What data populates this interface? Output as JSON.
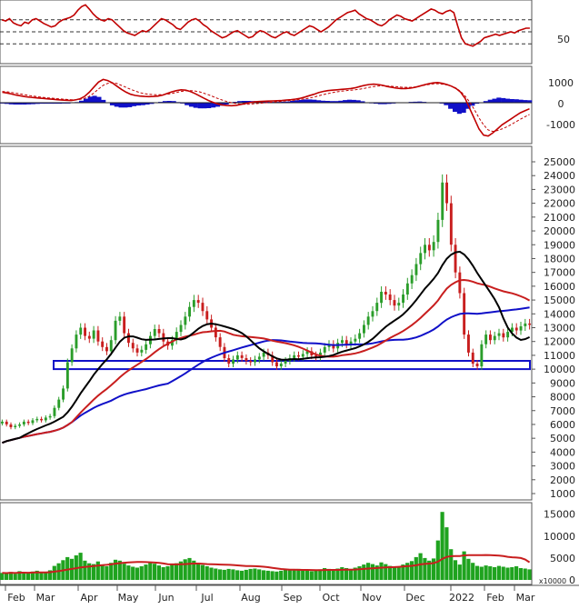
{
  "chart_data": [
    {
      "type": "line",
      "panel": "rsi",
      "title": "",
      "ylim": [
        0,
        100
      ],
      "reference_lines": [
        30,
        50,
        70
      ],
      "axis_ticks": [
        "50"
      ],
      "series": [
        {
          "color": "#c00000",
          "values": [
            70,
            68,
            72,
            65,
            62,
            60,
            66,
            64,
            70,
            72,
            68,
            64,
            61,
            58,
            60,
            66,
            70,
            72,
            74,
            78,
            86,
            92,
            95,
            88,
            80,
            74,
            70,
            68,
            72,
            70,
            64,
            58,
            52,
            48,
            46,
            44,
            48,
            52,
            50,
            54,
            60,
            66,
            72,
            70,
            66,
            62,
            56,
            54,
            60,
            66,
            70,
            72,
            68,
            62,
            58,
            52,
            48,
            44,
            40,
            42,
            46,
            50,
            52,
            48,
            44,
            40,
            42,
            48,
            52,
            50,
            46,
            42,
            40,
            44,
            48,
            50,
            46,
            44,
            48,
            52,
            56,
            60,
            58,
            54,
            50,
            54,
            58,
            64,
            70,
            74,
            78,
            82,
            84,
            86,
            80,
            76,
            72,
            70,
            66,
            62,
            60,
            64,
            70,
            74,
            78,
            76,
            72,
            70,
            68,
            72,
            76,
            80,
            84,
            88,
            86,
            82,
            80,
            84,
            86,
            82,
            60,
            40,
            30,
            28,
            26,
            30,
            34,
            40,
            42,
            44,
            46,
            44,
            46,
            48,
            50,
            48,
            52,
            54,
            56,
            56
          ]
        }
      ]
    },
    {
      "type": "line",
      "panel": "macd",
      "title": "",
      "ylim": [
        -1800,
        1800
      ],
      "axis_ticks": [
        "1000",
        "0",
        "-1000"
      ],
      "series": [
        {
          "color": "#c00000",
          "values": [
            520,
            480,
            430,
            380,
            340,
            300,
            270,
            250,
            230,
            210,
            190,
            170,
            150,
            130,
            120,
            110,
            140,
            200,
            320,
            520,
            780,
            1020,
            1150,
            1100,
            980,
            820,
            660,
            520,
            420,
            360,
            330,
            310,
            300,
            310,
            330,
            380,
            460,
            540,
            600,
            640,
            620,
            560,
            460,
            340,
            220,
            110,
            20,
            -60,
            -110,
            -140,
            -150,
            -130,
            -90,
            -40,
            10,
            40,
            60,
            70,
            80,
            90,
            100,
            110,
            130,
            150,
            180,
            220,
            280,
            350,
            420,
            500,
            560,
            600,
            620,
            640,
            660,
            680,
            700,
            740,
            800,
            860,
            900,
            920,
            900,
            860,
            800,
            760,
            720,
            700,
            700,
            720,
            760,
            820,
            880,
            940,
            980,
            1000,
            960,
            900,
            820,
            700,
            520,
            200,
            -300,
            -800,
            -1300,
            -1600,
            -1650,
            -1500,
            -1300,
            -1100,
            -950,
            -800,
            -650,
            -500,
            -400,
            -300
          ]
        },
        {
          "color": "#c00000",
          "values": [
            560,
            540,
            510,
            470,
            430,
            390,
            350,
            320,
            290,
            260,
            240,
            220,
            200,
            180,
            160,
            150,
            150,
            170,
            220,
            320,
            480,
            680,
            860,
            960,
            990,
            950,
            860,
            760,
            660,
            580,
            500,
            450,
            420,
            400,
            390,
            400,
            420,
            460,
            510,
            560,
            590,
            600,
            580,
            540,
            470,
            390,
            300,
            210,
            130,
            60,
            0,
            -40,
            -70,
            -80,
            -70,
            -50,
            -30,
            -10,
            10,
            30,
            50,
            70,
            90,
            110,
            130,
            160,
            190,
            230,
            280,
            340,
            400,
            450,
            500,
            540,
            570,
            600,
            620,
            640,
            670,
            710,
            760,
            800,
            830,
            840,
            830,
            810,
            790,
            770,
            760,
            760,
            780,
            820,
            860,
            900,
            930,
            940,
            920,
            880,
            820,
            720,
            560,
            320,
            20,
            -350,
            -750,
            -1100,
            -1350,
            -1420,
            -1380,
            -1300,
            -1200,
            -1080,
            -950,
            -820,
            -700,
            -580
          ]
        },
        {
          "color": "#1010c8",
          "values": [
            -40,
            -60,
            -80,
            -90,
            -90,
            -90,
            -80,
            -70,
            -60,
            -50,
            -50,
            -50,
            -50,
            -50,
            -40,
            -40,
            -10,
            30,
            100,
            200,
            300,
            340,
            290,
            140,
            -10,
            -130,
            -200,
            -240,
            -240,
            -220,
            -170,
            -140,
            -120,
            -90,
            -60,
            -20,
            40,
            80,
            90,
            80,
            30,
            -40,
            -120,
            -200,
            -250,
            -280,
            -280,
            -270,
            -240,
            -200,
            -150,
            -90,
            -20,
            40,
            80,
            90,
            90,
            80,
            70,
            60,
            50,
            40,
            40,
            40,
            50,
            60,
            90,
            120,
            140,
            160,
            160,
            150,
            120,
            100,
            90,
            80,
            80,
            100,
            130,
            150,
            140,
            120,
            70,
            20,
            -30,
            -50,
            -70,
            -70,
            -60,
            -40,
            -20,
            0,
            20,
            40,
            50,
            60,
            40,
            20,
            0,
            -20,
            -40,
            -120,
            -300,
            -450,
            -550,
            -500,
            -300,
            -150,
            -50,
            20,
            80,
            150,
            200,
            250,
            230,
            200,
            180,
            170,
            150,
            130,
            120
          ]
        }
      ]
    },
    {
      "type": "line",
      "panel": "price",
      "title": "",
      "ylim": [
        500,
        25500
      ],
      "y_ticks": [
        "25000",
        "24000",
        "23000",
        "22000",
        "21000",
        "20000",
        "19000",
        "18000",
        "17000",
        "16000",
        "15000",
        "14000",
        "13000",
        "12000",
        "11000",
        "10000",
        "9000",
        "8000",
        "7000",
        "6000",
        "5000",
        "4000",
        "3000",
        "2000",
        "1000"
      ],
      "x_ticks": [
        "Feb",
        "Mar",
        "Apr",
        "May",
        "Jun",
        "Jul",
        "Aug",
        "Sep",
        "Oct",
        "Nov",
        "Dec",
        "2022",
        "Feb",
        "Mar"
      ],
      "support_zone": {
        "low": 10000,
        "high": 10600
      },
      "candles_close": [
        6200,
        6000,
        5800,
        5900,
        6000,
        6200,
        6100,
        6300,
        6400,
        6300,
        6500,
        6600,
        7200,
        7800,
        8600,
        10500,
        11500,
        12500,
        13000,
        12400,
        12200,
        12800,
        12000,
        11600,
        11300,
        12100,
        13500,
        13800,
        12600,
        11900,
        11500,
        11200,
        11400,
        11800,
        12400,
        12900,
        12600,
        12000,
        11700,
        12100,
        12700,
        13200,
        13800,
        14500,
        15000,
        14800,
        14200,
        13600,
        13000,
        12300,
        11600,
        10800,
        10400,
        10700,
        11000,
        10800,
        10600,
        10500,
        10700,
        10900,
        11200,
        11000,
        10500,
        10200,
        10400,
        10600,
        10800,
        11000,
        10900,
        11100,
        11300,
        11000,
        10900,
        11200,
        11600,
        11800,
        11500,
        11900,
        12100,
        11800,
        12000,
        12200,
        12600,
        13200,
        13800,
        14200,
        14800,
        15600,
        15400,
        15000,
        14600,
        14800,
        15400,
        16200,
        16800,
        17600,
        18400,
        19000,
        18600,
        19200,
        20800,
        23500,
        22000,
        19000,
        17000,
        15500,
        12500,
        11200,
        10400,
        10200,
        11800,
        12500,
        12100,
        12400,
        12600,
        12300,
        12700,
        13000,
        12800,
        13100,
        13300,
        13200
      ]
    },
    {
      "type": "bar",
      "panel": "volume",
      "title": "",
      "ylim": [
        0,
        17000
      ],
      "y_ticks": [
        "15000",
        "10000",
        "5000",
        "0"
      ],
      "unit_label": "x10000",
      "values": [
        1600,
        1500,
        1800,
        1400,
        2000,
        1700,
        1500,
        1900,
        2100,
        1800,
        1700,
        2200,
        3200,
        3800,
        4500,
        5200,
        4800,
        5600,
        6200,
        4400,
        3800,
        3600,
        4200,
        3500,
        3100,
        3900,
        4600,
        4400,
        3700,
        3300,
        3000,
        2800,
        3100,
        3500,
        3900,
        3700,
        3300,
        2900,
        3100,
        3500,
        3800,
        4200,
        4700,
        5000,
        4400,
        3900,
        3400,
        3100,
        2800,
        2600,
        2400,
        2300,
        2500,
        2400,
        2200,
        2100,
        2300,
        2500,
        2600,
        2400,
        2200,
        2100,
        2000,
        1900,
        2100,
        2300,
        2200,
        2400,
        2500,
        2300,
        2200,
        2000,
        2100,
        2400,
        2700,
        2500,
        2300,
        2600,
        2900,
        2700,
        2500,
        2800,
        3100,
        3500,
        3900,
        3600,
        3300,
        4000,
        3600,
        3200,
        2900,
        3100,
        3500,
        3900,
        4300,
        5200,
        6100,
        5000,
        4400,
        4900,
        9000,
        15500,
        12000,
        7000,
        4500,
        3500,
        6500,
        4800,
        3900,
        3200,
        3000,
        3300,
        3100,
        2900,
        3200,
        3000,
        2800,
        2900,
        3100,
        2700,
        2600,
        2400
      ]
    }
  ]
}
